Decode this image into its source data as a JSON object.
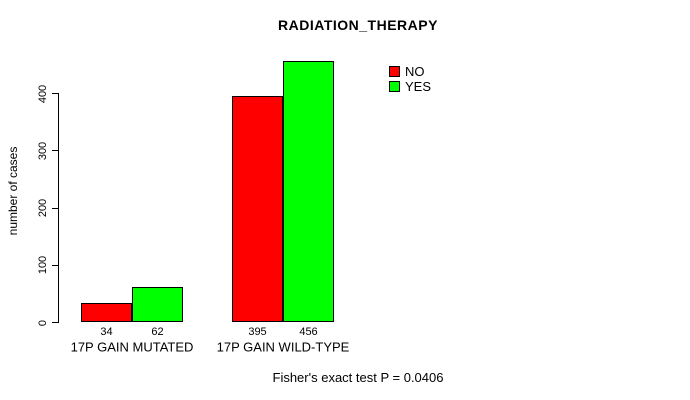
{
  "title": "RADIATION_THERAPY",
  "footer": "Fisher's exact test P = 0.0406",
  "chart_data": {
    "type": "bar",
    "categories": [
      "17P GAIN MUTATED",
      "17P GAIN WILD-TYPE"
    ],
    "series": [
      {
        "name": "NO",
        "color": "#ff0000",
        "values": [
          34,
          395
        ]
      },
      {
        "name": "YES",
        "color": "#00ff00",
        "values": [
          62,
          456
        ]
      }
    ],
    "title": "RADIATION_THERAPY",
    "xlabel": "",
    "ylabel": "number of cases",
    "yticks": [
      0,
      100,
      200,
      300,
      400
    ],
    "ylim": [
      0,
      460
    ],
    "bar_value_labels": [
      [
        34,
        62
      ],
      [
        395,
        456
      ]
    ],
    "legend_entries": [
      "NO",
      "YES"
    ],
    "legend_position": "top-right",
    "grid": false,
    "bar_border_color": "#000000",
    "annotation": "Fisher's exact test P = 0.0406"
  }
}
